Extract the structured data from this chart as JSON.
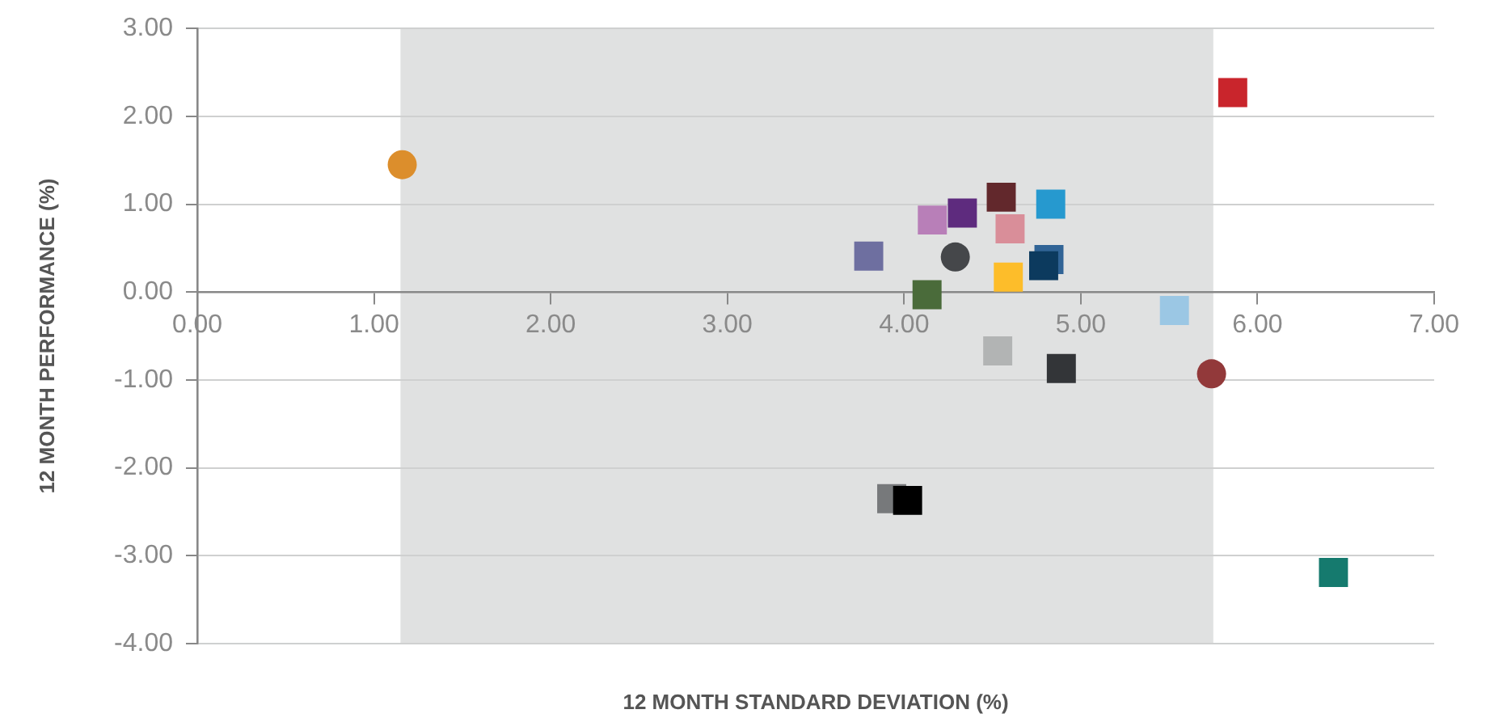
{
  "chart_data": {
    "type": "scatter",
    "xlabel": "12 MONTH STANDARD DEVIATION (%)",
    "ylabel": "12 MONTH PERFORMANCE (%)",
    "xlim": [
      0,
      7
    ],
    "ylim": [
      -4,
      3
    ],
    "xticks": [
      {
        "value": 0,
        "label": "0.00"
      },
      {
        "value": 1,
        "label": "1.00"
      },
      {
        "value": 2,
        "label": "2.00"
      },
      {
        "value": 3,
        "label": "3.00"
      },
      {
        "value": 4,
        "label": "4.00"
      },
      {
        "value": 5,
        "label": "5.00"
      },
      {
        "value": 6,
        "label": "6.00"
      },
      {
        "value": 7,
        "label": "7.00"
      }
    ],
    "yticks": [
      {
        "value": -4,
        "label": "-4.00"
      },
      {
        "value": -3,
        "label": "-3.00"
      },
      {
        "value": -2,
        "label": "-2.00"
      },
      {
        "value": -1,
        "label": "-1.00"
      },
      {
        "value": 0,
        "label": "0.00"
      },
      {
        "value": 1,
        "label": "1.00"
      },
      {
        "value": 2,
        "label": "2.00"
      },
      {
        "value": 3,
        "label": "3.00"
      }
    ],
    "grid": "y",
    "legend": false,
    "bands": [
      {
        "axis": "x",
        "from": 1.15,
        "to": 5.75,
        "color": "#e0e1e1"
      }
    ],
    "series": [
      {
        "marker": "square",
        "x": [
          5.86,
          3.8,
          4.16,
          4.33,
          4.55,
          4.83,
          4.6,
          4.82,
          4.79,
          4.59,
          4.13,
          5.53,
          4.53,
          4.89,
          3.93,
          4.02,
          6.43
        ],
        "values": [
          2.27,
          0.41,
          0.82,
          0.9,
          1.08,
          1.0,
          0.72,
          0.37,
          0.3,
          0.17,
          -0.03,
          -0.21,
          -0.67,
          -0.87,
          -2.35,
          -2.37,
          -3.19
        ],
        "colors": [
          "#c9252c",
          "#6e6fa0",
          "#b87fb8",
          "#5e2b7e",
          "#62282c",
          "#2699cf",
          "#d98e99",
          "#316496",
          "#0c3a5e",
          "#fdbd2a",
          "#4a6b3a",
          "#9bc7e4",
          "#b2b4b4",
          "#333538",
          "#77797b",
          "#000000",
          "#157a6e"
        ]
      },
      {
        "marker": "circle",
        "x": [
          1.16,
          4.29,
          5.74
        ],
        "values": [
          1.45,
          0.4,
          -0.93
        ],
        "colors": [
          "#dc8e2c",
          "#45474a",
          "#92393a"
        ]
      }
    ]
  }
}
